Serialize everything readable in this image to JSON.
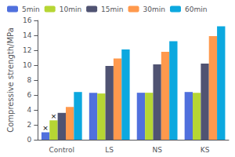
{
  "chart_data": {
    "type": "bar",
    "categories": [
      "Control",
      "LS",
      "NS",
      "KS"
    ],
    "series": [
      {
        "name": "5min",
        "values": [
          1.0,
          6.3,
          6.3,
          6.4
        ]
      },
      {
        "name": "10min",
        "values": [
          2.6,
          6.2,
          6.3,
          6.3
        ]
      },
      {
        "name": "15min",
        "values": [
          3.6,
          9.9,
          10.1,
          10.2
        ]
      },
      {
        "name": "30min",
        "values": [
          4.4,
          10.9,
          11.8,
          13.9
        ]
      },
      {
        "name": "60min",
        "values": [
          6.4,
          12.1,
          13.2,
          15.2
        ]
      }
    ],
    "ylabel": "Compressive strength/MPa",
    "ylim": [
      0,
      16
    ],
    "yticks": [
      0,
      2,
      4,
      6,
      8,
      10,
      12,
      14,
      16
    ],
    "grid": false,
    "legend": "upper left",
    "annotations": [
      {
        "text": "×",
        "category": "Control",
        "series": "5min"
      },
      {
        "text": "×",
        "category": "Control",
        "series": "10min"
      }
    ]
  }
}
